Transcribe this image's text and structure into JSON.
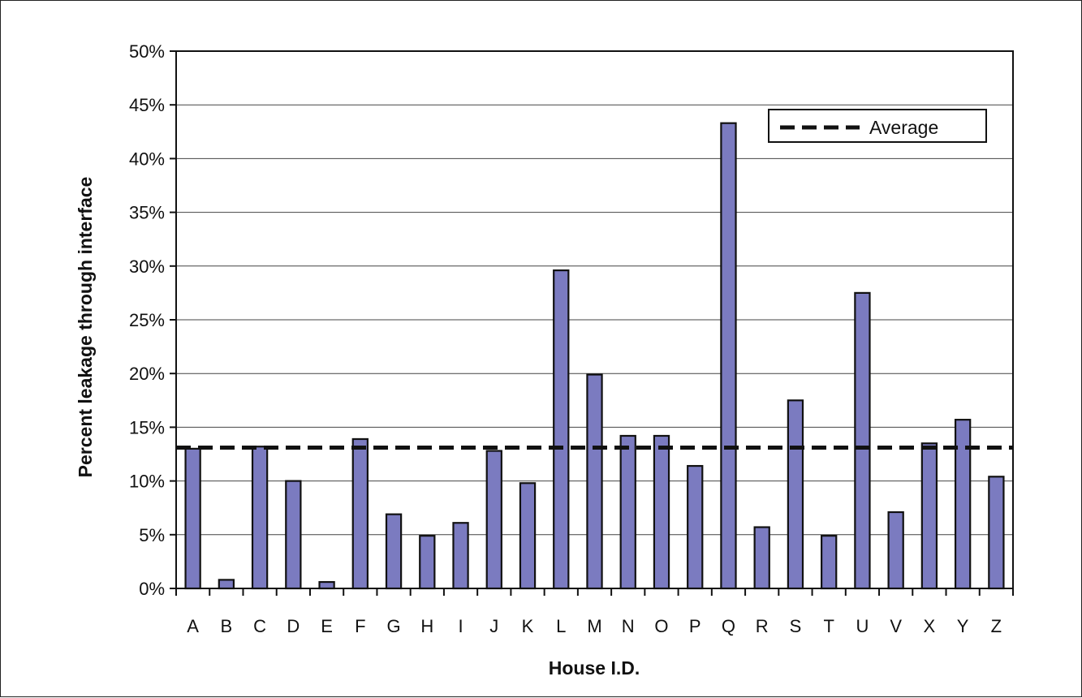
{
  "chart_data": {
    "type": "bar",
    "title": "",
    "xlabel": "House I.D.",
    "ylabel": "Percent leakage through interface",
    "ylim": [
      0,
      50
    ],
    "ytick_step": 5,
    "ytick_suffix": "%",
    "grid": "horizontal",
    "legend_position": "top-right",
    "bar_color": "#7B7BC0",
    "categories": [
      "A",
      "B",
      "C",
      "D",
      "E",
      "F",
      "G",
      "H",
      "I",
      "J",
      "K",
      "L",
      "M",
      "N",
      "O",
      "P",
      "Q",
      "R",
      "S",
      "T",
      "U",
      "V",
      "X",
      "Y",
      "Z"
    ],
    "values": [
      13.0,
      0.8,
      13.2,
      10.0,
      0.6,
      13.9,
      6.9,
      4.9,
      6.1,
      12.8,
      9.8,
      29.6,
      19.9,
      14.2,
      14.2,
      11.4,
      43.3,
      5.7,
      17.5,
      4.9,
      27.5,
      7.1,
      13.5,
      15.7,
      10.4
    ],
    "reference_lines": [
      {
        "name": "Average",
        "value": 13.1,
        "style": "dashed",
        "color": "#111111"
      }
    ]
  }
}
